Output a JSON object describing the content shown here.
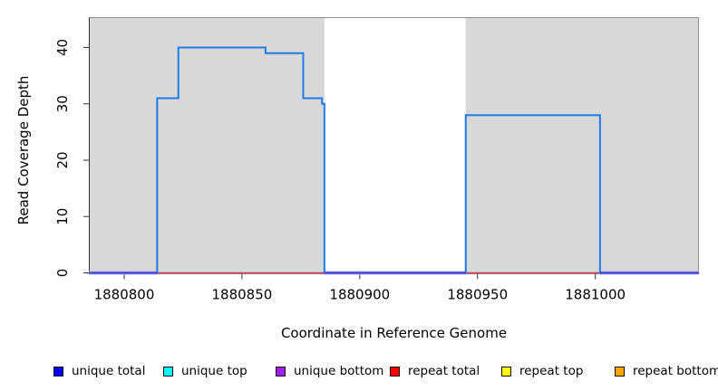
{
  "chart_data": {
    "type": "line",
    "title": "",
    "xlabel": "Coordinate in Reference Genome",
    "ylabel": "Read Coverage Depth",
    "xlim": [
      1880785,
      1881044
    ],
    "ylim": [
      0,
      45.3
    ],
    "x_ticks": [
      1880800,
      1880850,
      1880900,
      1880950,
      1881000
    ],
    "y_ticks": [
      0,
      10,
      20,
      30,
      40
    ],
    "grid": false,
    "legend_position": "bottom",
    "shaded_regions": [
      [
        1880785,
        1880885
      ],
      [
        1880945,
        1881044
      ]
    ],
    "coverage_steps": [
      [
        1880785,
        0
      ],
      [
        1880814,
        31
      ],
      [
        1880823,
        40
      ],
      [
        1880860,
        39
      ],
      [
        1880876,
        31
      ],
      [
        1880884,
        30
      ],
      [
        1880885,
        0
      ],
      [
        1880945,
        28
      ],
      [
        1881002,
        0
      ],
      [
        1881044,
        0
      ]
    ],
    "series_note": "blue step line = unique total coverage; repeat total constant 0 (red); unique top/bottom overlap at 0 giving indigo/lavender baseline in uncovered spans",
    "colors": {
      "plot_shade": "#D8D8D8",
      "box": "#8E8E8E",
      "axis": "#333333",
      "coverage_line": "#1F7CE8",
      "repeat_total_line": "#D23B5B",
      "zero_core": "#3939D4",
      "zero_halo": "#B0A8F2",
      "text": "#000000"
    }
  },
  "legend": {
    "items": [
      {
        "label": "unique total",
        "color": "#0000FF"
      },
      {
        "label": "unique top",
        "color": "#00FFFF"
      },
      {
        "label": "unique bottom",
        "color": "#A020F0"
      },
      {
        "label": "repeat total",
        "color": "#FF0000"
      },
      {
        "label": "repeat top",
        "color": "#FFFF00"
      },
      {
        "label": "repeat bottom",
        "color": "#FFA500"
      }
    ]
  }
}
